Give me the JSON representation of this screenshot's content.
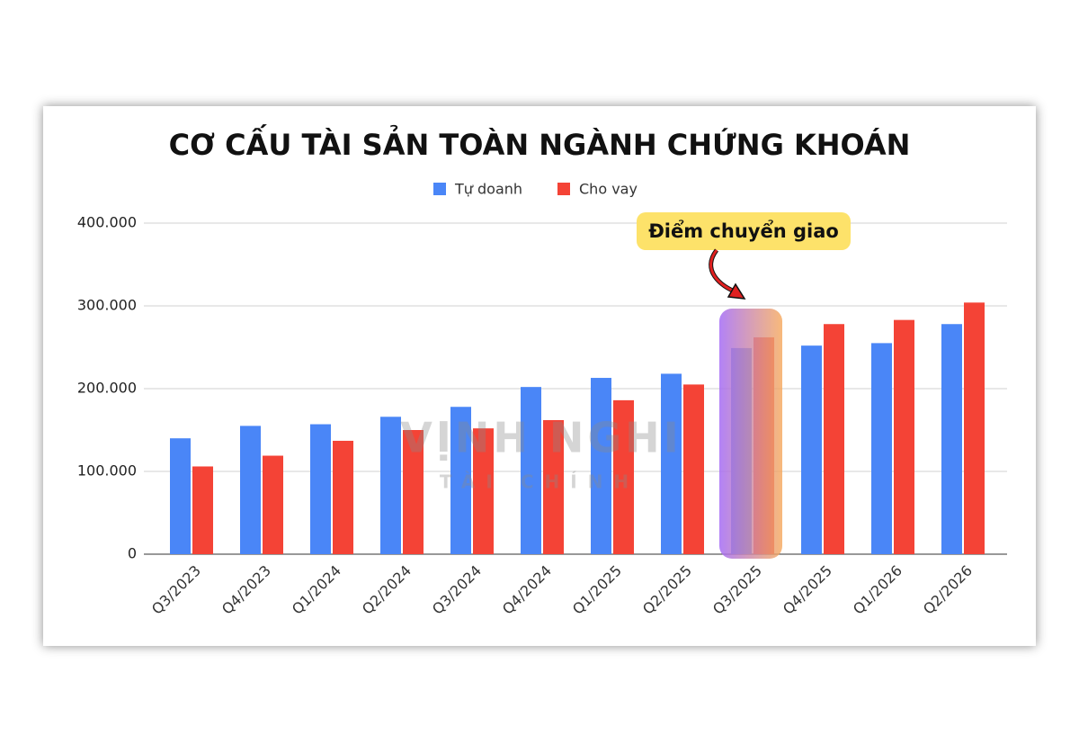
{
  "chart_data": {
    "type": "bar",
    "title": "CƠ CẤU TÀI SẢN TOÀN NGÀNH CHỨNG KHOÁN",
    "categories": [
      "Q3/2023",
      "Q4/2023",
      "Q1/2024",
      "Q2/2024",
      "Q3/2024",
      "Q4/2024",
      "Q1/2025",
      "Q2/2025",
      "Q3/2025",
      "Q4/2025",
      "Q1/2026",
      "Q2/2026"
    ],
    "series": [
      {
        "name": "Tự doanh",
        "color": "#4a86f7",
        "values": [
          140000,
          155000,
          157000,
          166000,
          178000,
          202000,
          213000,
          218000,
          249000,
          252000,
          255000,
          278000
        ]
      },
      {
        "name": "Cho vay",
        "color": "#f44336",
        "values": [
          106000,
          119000,
          137000,
          150000,
          152000,
          162000,
          186000,
          205000,
          262000,
          278000,
          283000,
          304000
        ]
      }
    ],
    "ylim": [
      0,
      400000
    ],
    "yticks": [
      0,
      {
        "value": 100000,
        "label": "100.000"
      },
      {
        "value": 200000,
        "label": "200.000"
      },
      {
        "value": 300000,
        "label": "300.000"
      },
      {
        "value": 400000,
        "label": "400.000"
      }
    ],
    "grid": true,
    "legend": "top",
    "annotation": "Điểm chuyển giao",
    "watermark": [
      "VỊNH NGHI",
      "TÀI CHÍNH"
    ]
  }
}
